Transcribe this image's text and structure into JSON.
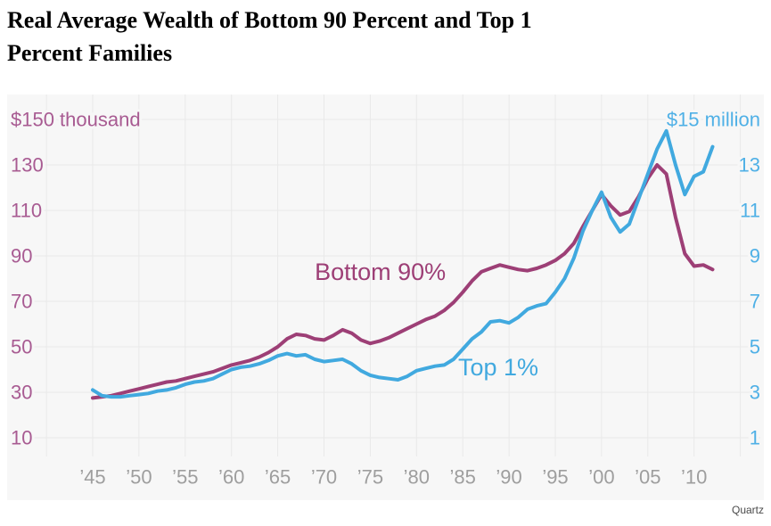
{
  "header": {
    "title_line1": "Real Average Wealth of Bottom 90 Percent and Top 1",
    "title_line2": "Percent Families"
  },
  "attribution": {
    "source": "Quartz"
  },
  "colors": {
    "bottom90_line": "#9d3f76",
    "bottom90_label": "#a85b92",
    "top1_line": "#41a9df",
    "top1_label": "#4fb0e6",
    "plot_background": "#f7f7f7",
    "gridline": "#e9e9e9",
    "x_tick_label": "#9e9e9e",
    "title": "#000000",
    "attribution": "#4a4a4a"
  },
  "chart_data": {
    "type": "line",
    "title": "Real Average Wealth of Bottom 90 Percent and Top 1 Percent Families",
    "grid": true,
    "legend_position": "inline-labels",
    "x_years": [
      1945,
      1946,
      1947,
      1948,
      1949,
      1950,
      1951,
      1952,
      1953,
      1954,
      1955,
      1956,
      1957,
      1958,
      1959,
      1960,
      1961,
      1962,
      1963,
      1964,
      1965,
      1966,
      1967,
      1968,
      1969,
      1970,
      1971,
      1972,
      1973,
      1974,
      1975,
      1976,
      1977,
      1978,
      1979,
      1980,
      1981,
      1982,
      1983,
      1984,
      1985,
      1986,
      1987,
      1988,
      1989,
      1990,
      1991,
      1992,
      1993,
      1994,
      1995,
      1996,
      1997,
      1998,
      1999,
      2000,
      2001,
      2002,
      2003,
      2004,
      2005,
      2006,
      2007,
      2008,
      2009,
      2010,
      2011,
      2012
    ],
    "series": [
      {
        "name": "Bottom 90%",
        "axis": "left",
        "unit": "thousand dollars",
        "color_key": "bottom90_line",
        "values": [
          27.5,
          28,
          28.5,
          29.5,
          30.5,
          31.5,
          32.5,
          33.5,
          34.5,
          35,
          36,
          37,
          38,
          39,
          40.5,
          42,
          43,
          44,
          45.5,
          47.5,
          50,
          53.5,
          55.5,
          55,
          53.5,
          53,
          55,
          57.5,
          56,
          53,
          51.5,
          52.5,
          54,
          56,
          58,
          60,
          62,
          63.5,
          66,
          69.5,
          74,
          79,
          83,
          84.5,
          86,
          85,
          84,
          83.5,
          84.5,
          86,
          88,
          91,
          95.5,
          103,
          110,
          117,
          112,
          108,
          109.5,
          116,
          124,
          130,
          126,
          107,
          91,
          85.5,
          86,
          84
        ]
      },
      {
        "name": "Top 1%",
        "axis": "right",
        "unit": "million dollars",
        "color_key": "top1_line",
        "values": [
          3.1,
          2.85,
          2.8,
          2.8,
          2.85,
          2.9,
          2.95,
          3.05,
          3.1,
          3.2,
          3.35,
          3.45,
          3.5,
          3.6,
          3.8,
          4.0,
          4.1,
          4.15,
          4.25,
          4.4,
          4.6,
          4.7,
          4.6,
          4.65,
          4.45,
          4.35,
          4.4,
          4.45,
          4.25,
          3.95,
          3.75,
          3.65,
          3.6,
          3.55,
          3.7,
          3.95,
          4.05,
          4.15,
          4.2,
          4.45,
          4.9,
          5.35,
          5.65,
          6.1,
          6.15,
          6.05,
          6.3,
          6.65,
          6.8,
          6.9,
          7.4,
          8.0,
          8.9,
          10.1,
          11.0,
          11.8,
          10.7,
          10.05,
          10.4,
          11.5,
          12.6,
          13.7,
          14.5,
          13.0,
          11.7,
          12.5,
          12.7,
          13.8
        ]
      }
    ],
    "left_axis": {
      "unit_label": "$150 thousand",
      "tick_values": [
        130,
        110,
        90,
        70,
        50,
        30,
        10
      ],
      "top_gridline_value": 150,
      "range": [
        0,
        155
      ]
    },
    "right_axis": {
      "unit_label": "$15 million",
      "tick_values": [
        13,
        11,
        9,
        7,
        5,
        3,
        1
      ],
      "top_gridline_value": 15,
      "range": [
        0,
        15.5
      ]
    },
    "x_axis": {
      "tick_years": [
        1945,
        1950,
        1955,
        1960,
        1965,
        1970,
        1975,
        1980,
        1985,
        1990,
        1995,
        2000,
        2005,
        2010
      ],
      "labels": [
        "’45",
        "’50",
        "’55",
        "’60",
        "’65",
        "’70",
        "’75",
        "’80",
        "’85",
        "’90",
        "’95",
        "’00",
        "’05",
        "’10"
      ]
    },
    "annotations": [
      {
        "text": "Bottom 90%",
        "series": "Bottom 90%",
        "anchor_year": 1969,
        "anchor_value_left_axis": 83
      },
      {
        "text": "Top 1%",
        "series": "Top 1%",
        "anchor_year": 1984.5,
        "anchor_value_left_axis": 41
      }
    ]
  }
}
